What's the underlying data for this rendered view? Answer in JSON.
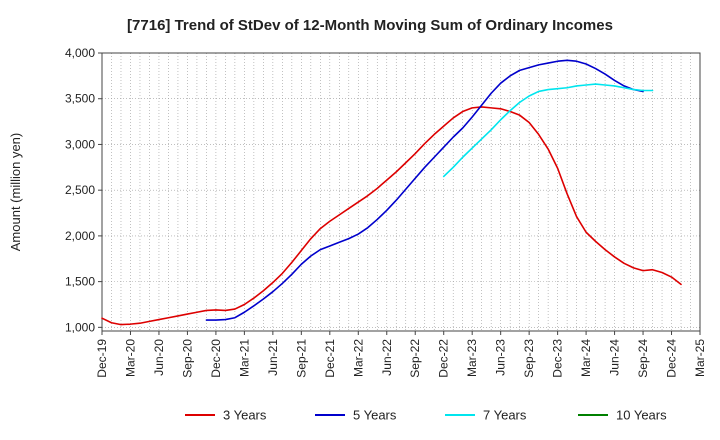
{
  "chart_data": {
    "type": "line",
    "title": "[7716]  Trend of StDev of 12-Month Moving Sum of Ordinary Incomes",
    "xlabel": "",
    "ylabel": "Amount (million yen)",
    "ylim": [
      960,
      4000
    ],
    "yticks": [
      1000,
      1500,
      2000,
      2500,
      3000,
      3500,
      4000
    ],
    "ytick_labels": [
      "1,000",
      "1,500",
      "2,000",
      "2,500",
      "3,000",
      "3,500",
      "4,000"
    ],
    "x_start_month": "2019-12",
    "x_end_month": "2025-03",
    "xtick_labels": [
      "Dec-19",
      "Mar-20",
      "Jun-20",
      "Sep-20",
      "Dec-20",
      "Mar-21",
      "Jun-21",
      "Sep-21",
      "Dec-21",
      "Mar-22",
      "Jun-22",
      "Sep-22",
      "Dec-22",
      "Mar-23",
      "Jun-23",
      "Sep-23",
      "Dec-23",
      "Mar-24",
      "Jun-24",
      "Sep-24",
      "Dec-24",
      "Mar-25"
    ],
    "grid": true,
    "legend_position": "bottom",
    "series": [
      {
        "name": "3 Years",
        "color": "#dd0000",
        "start": "2019-12",
        "values": [
          1100,
          1050,
          1030,
          1035,
          1045,
          1065,
          1085,
          1105,
          1125,
          1145,
          1165,
          1185,
          1190,
          1185,
          1200,
          1250,
          1320,
          1400,
          1490,
          1590,
          1710,
          1840,
          1970,
          2080,
          2160,
          2230,
          2300,
          2370,
          2440,
          2520,
          2610,
          2700,
          2800,
          2900,
          3010,
          3110,
          3200,
          3290,
          3360,
          3400,
          3410,
          3400,
          3390,
          3360,
          3320,
          3240,
          3110,
          2950,
          2740,
          2460,
          2210,
          2040,
          1940,
          1850,
          1770,
          1700,
          1650,
          1620,
          1630,
          1600,
          1550,
          1470
        ]
      },
      {
        "name": "5 Years",
        "color": "#0000cc",
        "start": "2020-11",
        "values": [
          1080,
          1080,
          1085,
          1105,
          1165,
          1235,
          1310,
          1390,
          1480,
          1580,
          1690,
          1780,
          1850,
          1890,
          1930,
          1970,
          2020,
          2090,
          2180,
          2280,
          2390,
          2510,
          2630,
          2750,
          2860,
          2970,
          3080,
          3180,
          3300,
          3430,
          3560,
          3670,
          3750,
          3810,
          3840,
          3870,
          3890,
          3910,
          3920,
          3910,
          3880,
          3830,
          3770,
          3700,
          3640,
          3600,
          3580
        ]
      },
      {
        "name": "7 Years",
        "color": "#00e5ee",
        "start": "2022-12",
        "values": [
          2650,
          2750,
          2860,
          2960,
          3060,
          3160,
          3270,
          3370,
          3460,
          3530,
          3580,
          3600,
          3610,
          3620,
          3640,
          3650,
          3660,
          3650,
          3640,
          3620,
          3600,
          3590,
          3590
        ]
      },
      {
        "name": "10 Years",
        "color": "#008000",
        "start": "2025-03",
        "values": []
      }
    ]
  }
}
